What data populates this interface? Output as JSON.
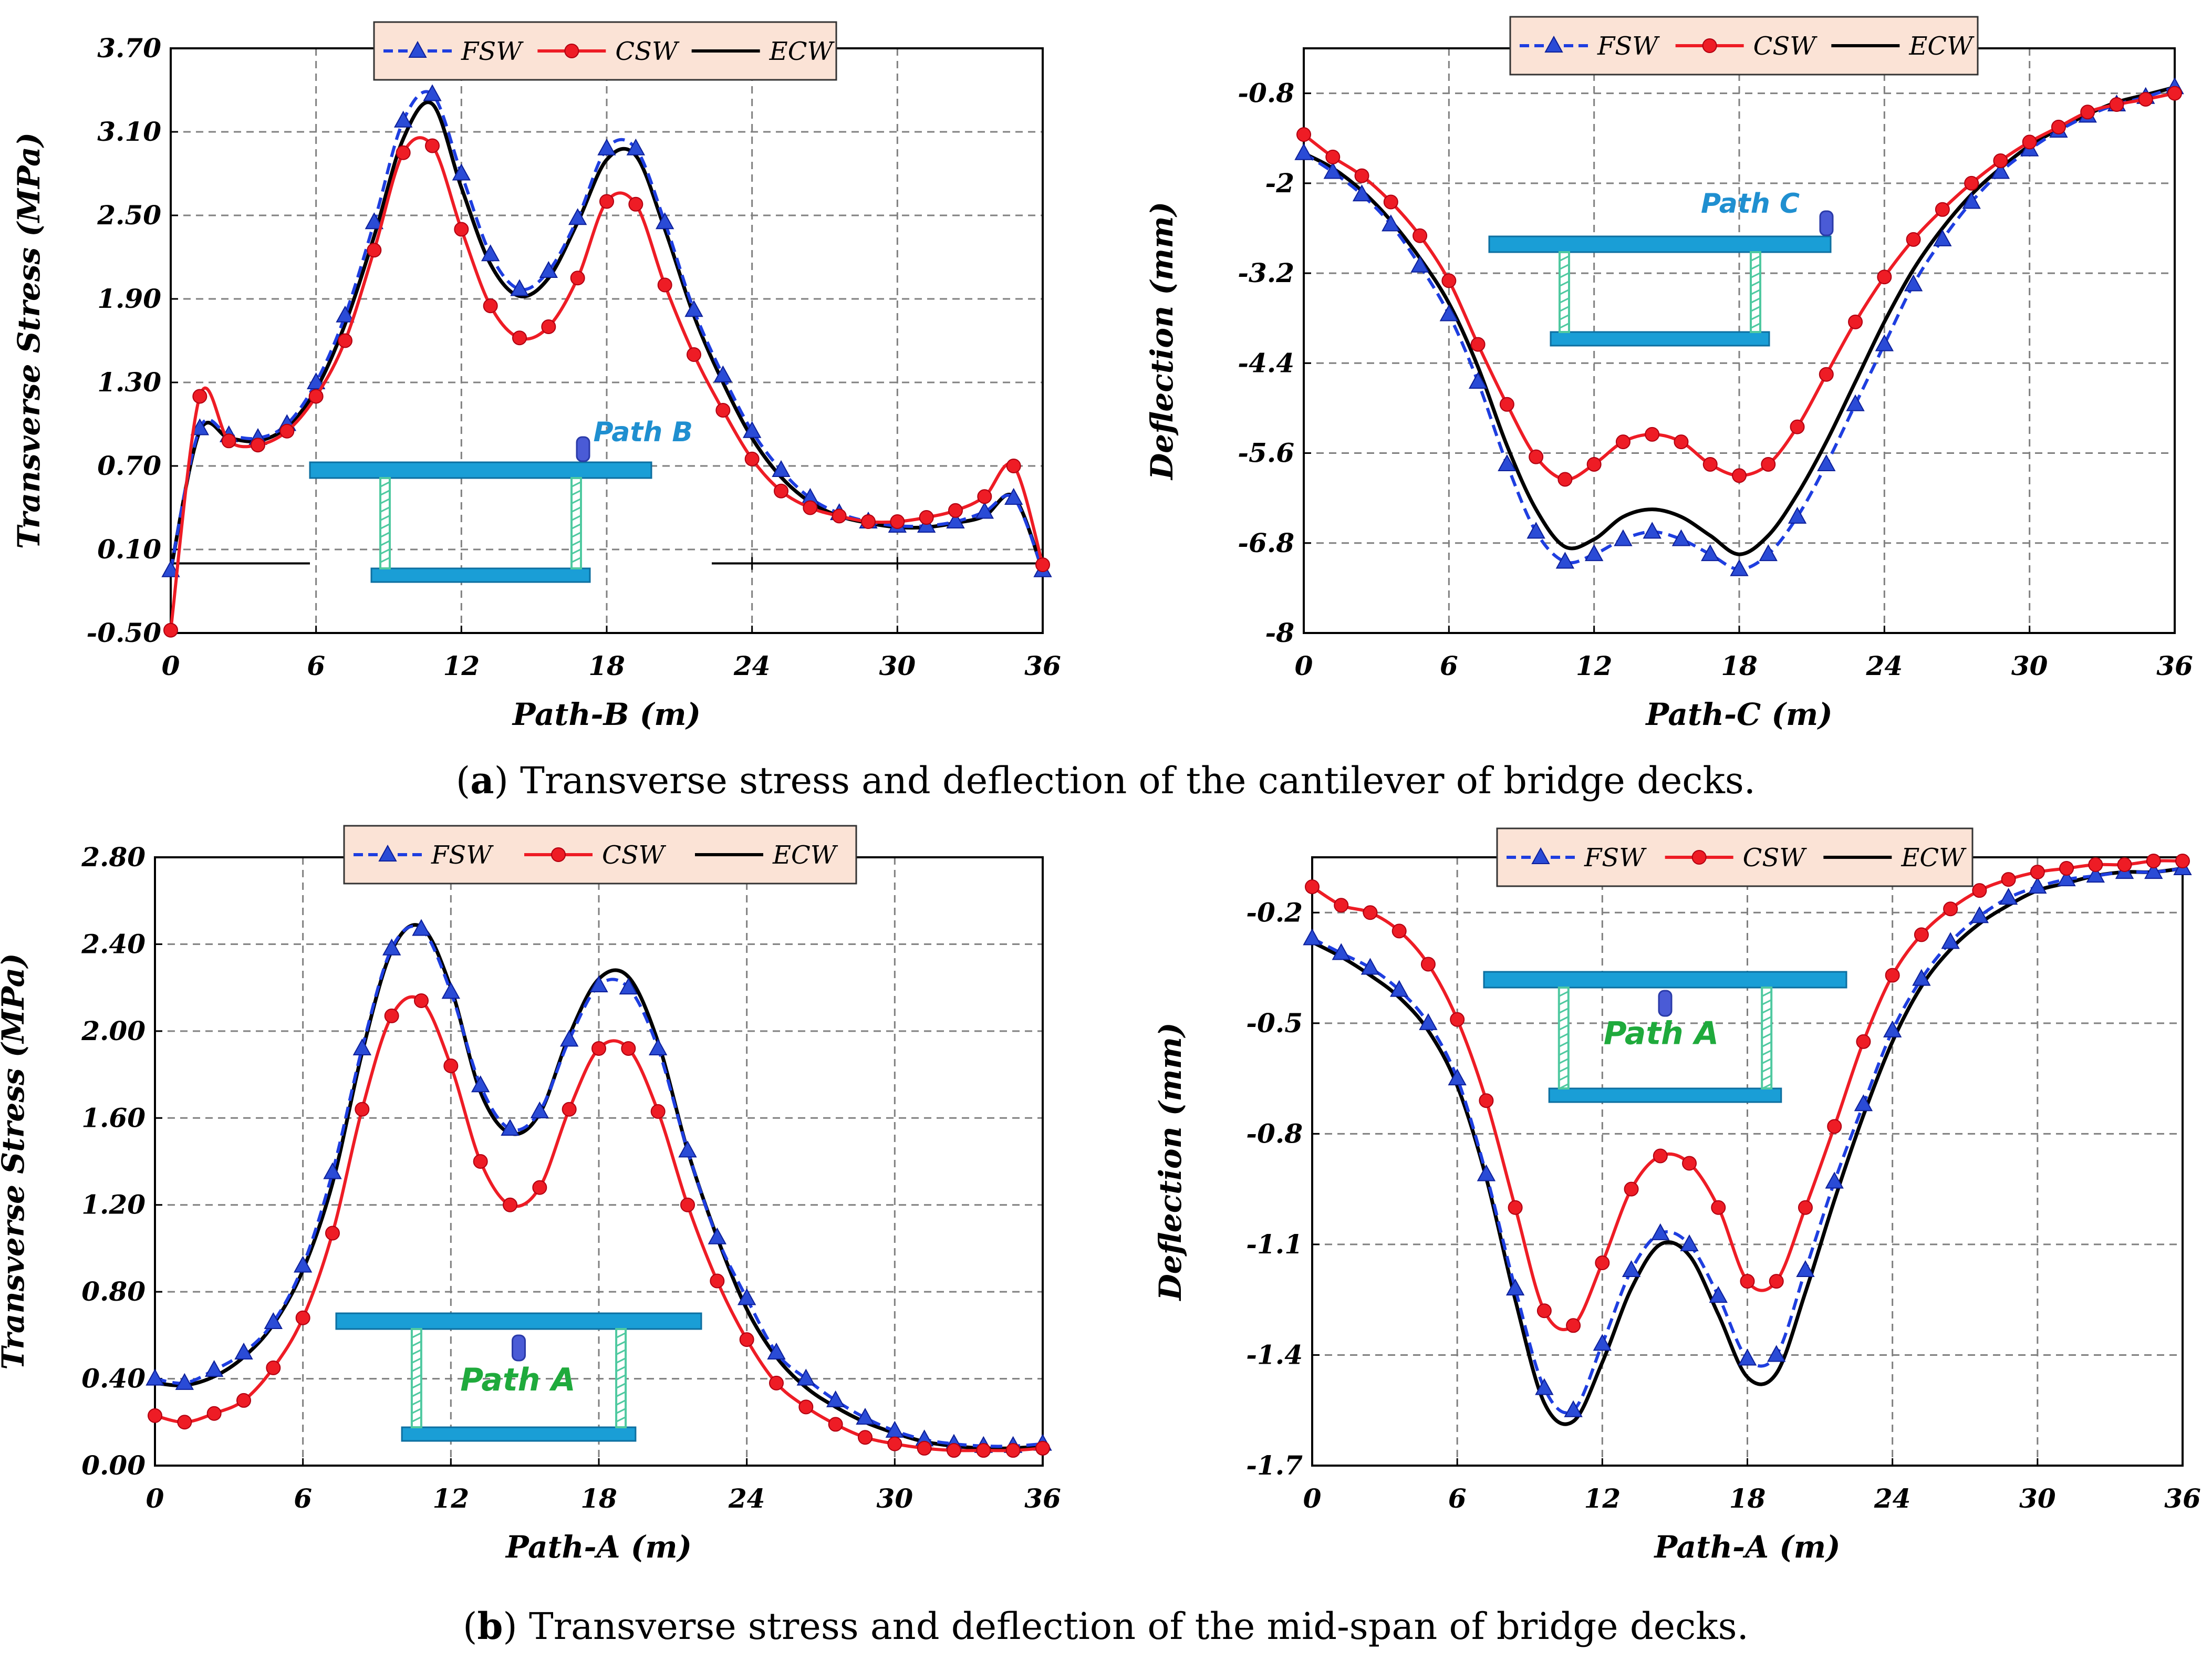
{
  "colors": {
    "fsw": "#1e3ee0",
    "csw": "#ee1c25",
    "ecw": "#000000",
    "legend_bg": "#fbe3d6",
    "grid": "#808080",
    "deck": "#1a9ed6",
    "web": "#4fc9a0",
    "path_blue": "#1f8fd0",
    "path_green": "#1faa3c"
  },
  "legend": {
    "fsw": "FSW",
    "csw": "CSW",
    "ecw": "ECW"
  },
  "captions": {
    "a_tag": "a",
    "a_text": "Transverse stress and deflection of the cantilever of bridge decks.",
    "b_tag": "b",
    "b_text": "Transverse stress and deflection of the mid-span of bridge decks."
  },
  "chart_data": [
    {
      "id": "a1",
      "type": "line",
      "xlabel": "Path-B (m)",
      "ylabel": "Transverse Stress (MPa)",
      "inset_label": "Path B",
      "xlim": [
        0,
        36
      ],
      "ylim": [
        -0.5,
        3.7
      ],
      "xticks": [
        "0",
        "6",
        "12",
        "18",
        "24",
        "30",
        "36"
      ],
      "yticks": [
        "-0.50",
        "0.10",
        "0.70",
        "1.30",
        "1.90",
        "2.50",
        "3.10",
        "3.70"
      ],
      "x": [
        0,
        1.2,
        2.4,
        3.6,
        4.8,
        6,
        7.2,
        8.4,
        9.6,
        10.8,
        12,
        13.2,
        14.4,
        15.6,
        16.8,
        18,
        19.2,
        20.4,
        21.6,
        22.8,
        24,
        25.2,
        26.4,
        27.6,
        28.8,
        30,
        31.2,
        32.4,
        33.6,
        34.8,
        36
      ],
      "series": [
        {
          "name": "FSW",
          "values": [
            -0.05,
            0.97,
            0.92,
            0.9,
            1.0,
            1.3,
            1.78,
            2.45,
            3.18,
            3.37,
            2.8,
            2.22,
            1.97,
            2.1,
            2.48,
            2.98,
            2.98,
            2.45,
            1.82,
            1.35,
            0.95,
            0.67,
            0.47,
            0.36,
            0.3,
            0.27,
            0.27,
            0.3,
            0.37,
            0.47,
            -0.05
          ]
        },
        {
          "name": "CSW",
          "values": [
            -0.48,
            1.2,
            0.88,
            0.85,
            0.95,
            1.2,
            1.6,
            2.25,
            2.95,
            3.0,
            2.4,
            1.85,
            1.62,
            1.7,
            2.05,
            2.6,
            2.58,
            2.0,
            1.5,
            1.1,
            0.75,
            0.52,
            0.4,
            0.34,
            0.3,
            0.3,
            0.33,
            0.38,
            0.48,
            0.7,
            -0.01
          ]
        },
        {
          "name": "ECW",
          "values": [
            -0.05,
            0.95,
            0.9,
            0.88,
            0.98,
            1.25,
            1.72,
            2.35,
            3.05,
            3.3,
            2.7,
            2.15,
            1.92,
            2.05,
            2.45,
            2.9,
            2.93,
            2.4,
            1.78,
            1.3,
            0.9,
            0.62,
            0.44,
            0.34,
            0.29,
            0.26,
            0.26,
            0.29,
            0.34,
            0.48,
            -0.05
          ]
        }
      ]
    },
    {
      "id": "a2",
      "type": "line",
      "xlabel": "Path-C (m)",
      "ylabel": "Deflection (mm)",
      "inset_label": "Path C",
      "xlim": [
        0,
        36
      ],
      "ylim": [
        -8,
        -0.2
      ],
      "xticks": [
        "0",
        "6",
        "12",
        "18",
        "24",
        "30",
        "36"
      ],
      "yticks": [
        "-8",
        "-6.8",
        "-5.6",
        "-4.4",
        "-3.2",
        "-2",
        "-0.8"
      ],
      "x": [
        0,
        1.2,
        2.4,
        3.6,
        4.8,
        6,
        7.2,
        8.4,
        9.6,
        10.8,
        12,
        13.2,
        14.4,
        15.6,
        16.8,
        18,
        19.2,
        20.4,
        21.6,
        22.8,
        24,
        25.2,
        26.4,
        27.6,
        28.8,
        30,
        31.2,
        32.4,
        33.6,
        34.8,
        36
      ],
      "series": [
        {
          "name": "FSW",
          "values": [
            -1.6,
            -1.85,
            -2.15,
            -2.55,
            -3.1,
            -3.75,
            -4.65,
            -5.75,
            -6.65,
            -7.05,
            -6.95,
            -6.75,
            -6.65,
            -6.75,
            -6.95,
            -7.15,
            -6.95,
            -6.45,
            -5.75,
            -4.95,
            -4.15,
            -3.35,
            -2.75,
            -2.25,
            -1.85,
            -1.55,
            -1.3,
            -1.1,
            -0.95,
            -0.85,
            -0.72
          ]
        },
        {
          "name": "CSW",
          "values": [
            -1.35,
            -1.65,
            -1.9,
            -2.25,
            -2.7,
            -3.3,
            -4.15,
            -4.95,
            -5.65,
            -5.95,
            -5.75,
            -5.45,
            -5.35,
            -5.45,
            -5.75,
            -5.9,
            -5.75,
            -5.25,
            -4.55,
            -3.85,
            -3.25,
            -2.75,
            -2.35,
            -2.0,
            -1.7,
            -1.45,
            -1.25,
            -1.05,
            -0.95,
            -0.88,
            -0.8
          ]
        },
        {
          "name": "ECW",
          "values": [
            -1.6,
            -1.8,
            -2.1,
            -2.5,
            -3.0,
            -3.6,
            -4.45,
            -5.5,
            -6.35,
            -6.85,
            -6.75,
            -6.45,
            -6.35,
            -6.45,
            -6.7,
            -6.95,
            -6.7,
            -6.15,
            -5.45,
            -4.65,
            -3.85,
            -3.15,
            -2.6,
            -2.15,
            -1.8,
            -1.5,
            -1.28,
            -1.08,
            -0.92,
            -0.82,
            -0.72
          ]
        }
      ]
    },
    {
      "id": "b1",
      "type": "line",
      "xlabel": "Path-A (m)",
      "ylabel": "Transverse Stress (MPa)",
      "inset_label": "Path A",
      "xlim": [
        0,
        36
      ],
      "ylim": [
        0,
        2.8
      ],
      "xticks": [
        "0",
        "6",
        "12",
        "18",
        "24",
        "30",
        "36"
      ],
      "yticks": [
        "0.00",
        "0.40",
        "0.80",
        "1.20",
        "1.60",
        "2.00",
        "2.40",
        "2.80"
      ],
      "x": [
        0,
        1.2,
        2.4,
        3.6,
        4.8,
        6,
        7.2,
        8.4,
        9.6,
        10.8,
        12,
        13.2,
        14.4,
        15.6,
        16.8,
        18,
        19.2,
        20.4,
        21.6,
        22.8,
        24,
        25.2,
        26.4,
        27.6,
        28.8,
        30,
        31.2,
        32.4,
        33.6,
        34.8,
        36
      ],
      "series": [
        {
          "name": "FSW",
          "values": [
            0.4,
            0.38,
            0.44,
            0.52,
            0.66,
            0.92,
            1.35,
            1.92,
            2.38,
            2.47,
            2.18,
            1.75,
            1.55,
            1.63,
            1.96,
            2.21,
            2.2,
            1.92,
            1.45,
            1.05,
            0.77,
            0.52,
            0.4,
            0.3,
            0.22,
            0.16,
            0.12,
            0.1,
            0.09,
            0.09,
            0.1
          ]
        },
        {
          "name": "CSW",
          "values": [
            0.23,
            0.2,
            0.24,
            0.3,
            0.45,
            0.68,
            1.07,
            1.64,
            2.07,
            2.14,
            1.84,
            1.4,
            1.2,
            1.28,
            1.64,
            1.92,
            1.92,
            1.63,
            1.2,
            0.85,
            0.58,
            0.38,
            0.27,
            0.19,
            0.13,
            0.1,
            0.08,
            0.07,
            0.07,
            0.07,
            0.08
          ]
        },
        {
          "name": "ECW",
          "values": [
            0.38,
            0.37,
            0.41,
            0.5,
            0.65,
            0.9,
            1.3,
            1.9,
            2.37,
            2.48,
            2.2,
            1.72,
            1.53,
            1.62,
            1.98,
            2.24,
            2.25,
            1.95,
            1.45,
            1.05,
            0.72,
            0.5,
            0.36,
            0.27,
            0.2,
            0.15,
            0.11,
            0.09,
            0.08,
            0.08,
            0.09
          ]
        }
      ]
    },
    {
      "id": "b2",
      "type": "line",
      "xlabel": "Path-A (m)",
      "ylabel": "Deflection (mm)",
      "inset_label": "Path A",
      "xlim": [
        0,
        36
      ],
      "ylim": [
        -1.7,
        -0.05
      ],
      "xticks": [
        "0",
        "6",
        "12",
        "18",
        "24",
        "30",
        "36"
      ],
      "yticks": [
        "-1.7",
        "-1.4",
        "-1.1",
        "-0.8",
        "-0.5",
        "-0.2"
      ],
      "x": [
        0,
        1.2,
        2.4,
        3.6,
        4.8,
        6,
        7.2,
        8.4,
        9.6,
        10.8,
        12,
        13.2,
        14.4,
        15.6,
        16.8,
        18,
        19.2,
        20.4,
        21.6,
        22.8,
        24,
        25.2,
        26.4,
        27.6,
        28.8,
        30,
        31.2,
        32.4,
        33.6,
        34.8,
        36
      ],
      "series": [
        {
          "name": "FSW",
          "values": [
            -0.27,
            -0.31,
            -0.35,
            -0.41,
            -0.5,
            -0.65,
            -0.91,
            -1.22,
            -1.49,
            -1.55,
            -1.37,
            -1.17,
            -1.07,
            -1.1,
            -1.24,
            -1.41,
            -1.4,
            -1.17,
            -0.93,
            -0.72,
            -0.52,
            -0.38,
            -0.28,
            -0.21,
            -0.16,
            -0.13,
            -0.11,
            -0.1,
            -0.09,
            -0.09,
            -0.08
          ]
        },
        {
          "name": "CSW",
          "values": [
            -0.13,
            -0.18,
            -0.2,
            -0.25,
            -0.34,
            -0.49,
            -0.71,
            -1.0,
            -1.28,
            -1.32,
            -1.15,
            -0.95,
            -0.86,
            -0.88,
            -1.0,
            -1.2,
            -1.2,
            -1.0,
            -0.78,
            -0.55,
            -0.37,
            -0.26,
            -0.19,
            -0.14,
            -0.11,
            -0.09,
            -0.08,
            -0.07,
            -0.07,
            -0.06,
            -0.06
          ]
        },
        {
          "name": "ECW",
          "values": [
            -0.28,
            -0.32,
            -0.37,
            -0.43,
            -0.52,
            -0.67,
            -0.92,
            -1.25,
            -1.53,
            -1.58,
            -1.42,
            -1.22,
            -1.1,
            -1.13,
            -1.29,
            -1.46,
            -1.45,
            -1.23,
            -0.98,
            -0.75,
            -0.55,
            -0.4,
            -0.3,
            -0.23,
            -0.18,
            -0.14,
            -0.12,
            -0.1,
            -0.09,
            -0.09,
            -0.08
          ]
        }
      ]
    }
  ]
}
